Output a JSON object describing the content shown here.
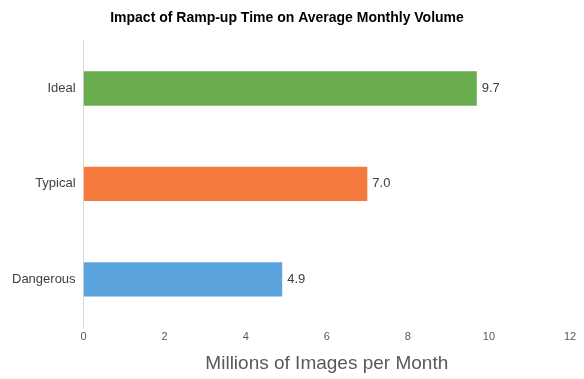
{
  "chart_data": {
    "type": "bar",
    "orientation": "horizontal",
    "title": "Impact of Ramp-up Time on Average Monthly Volume",
    "x_label": "Millions of Images per Month",
    "categories": [
      "Ideal",
      "Typical",
      "Dangerous"
    ],
    "values": [
      9.7,
      7.0,
      4.9
    ],
    "value_labels": [
      "9.7",
      "7.0",
      "4.9"
    ],
    "colors": [
      "#6aad4f",
      "#f47a3d",
      "#5ba3dc"
    ],
    "xlim": [
      0,
      12
    ],
    "xticks": [
      0,
      2,
      4,
      6,
      8,
      10,
      12
    ],
    "grid": false,
    "data_labels": true
  }
}
